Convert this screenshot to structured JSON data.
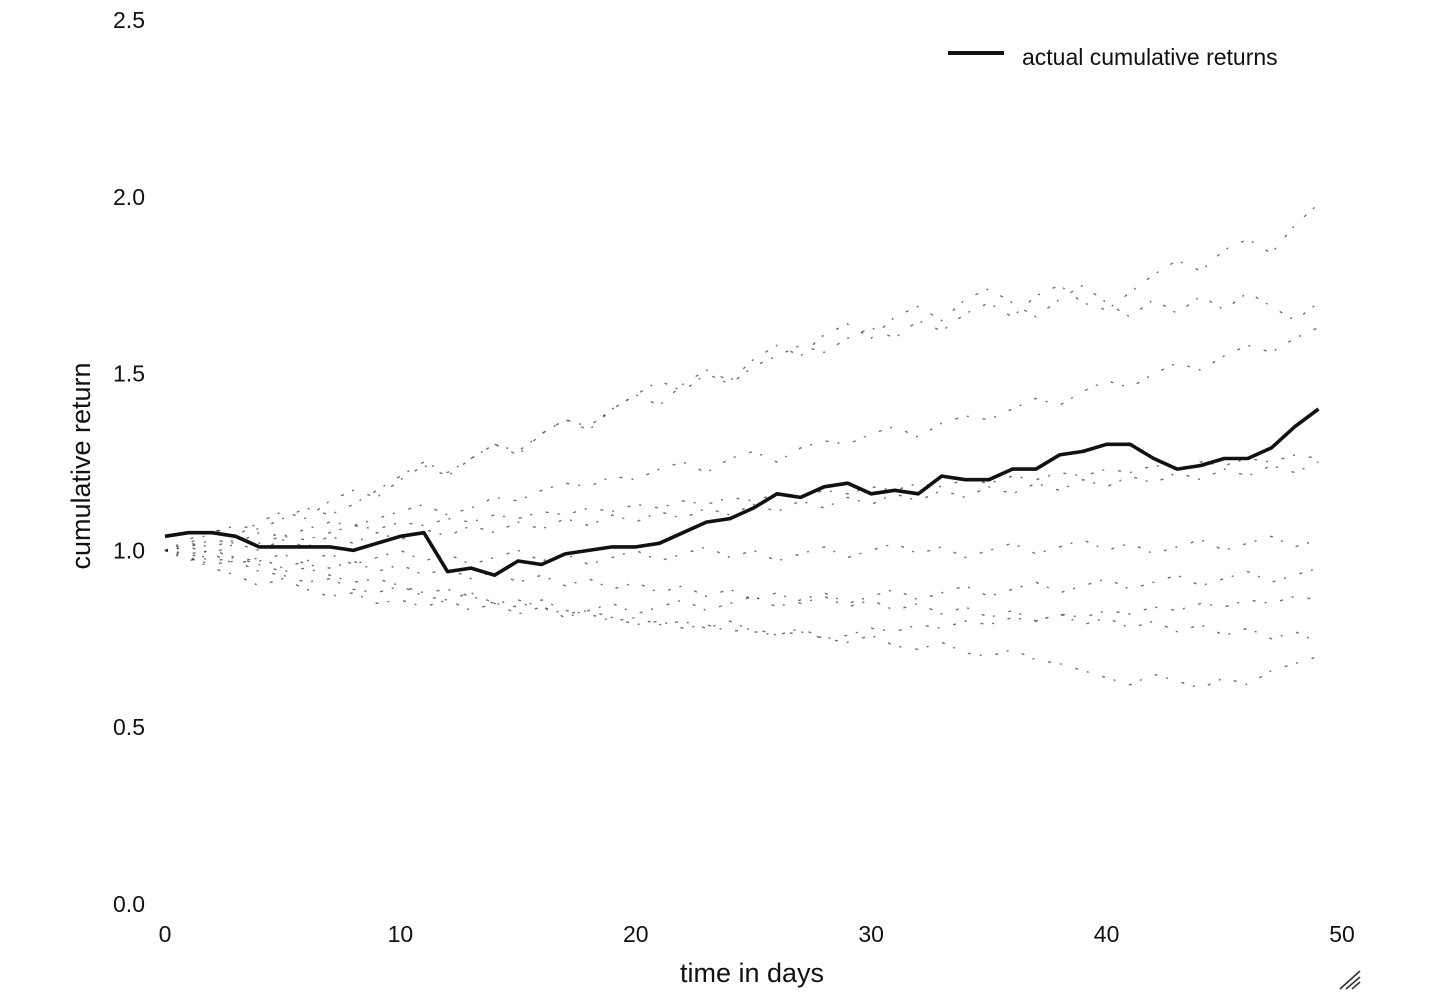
{
  "chart_data": {
    "type": "line",
    "xlabel": "time in days",
    "ylabel": "cumulative return",
    "xlim": [
      0,
      50
    ],
    "ylim": [
      0.0,
      2.5
    ],
    "xticks": [
      0,
      10,
      20,
      30,
      40,
      50
    ],
    "xtick_labels": [
      "0",
      "10",
      "20",
      "30",
      "40",
      "50"
    ],
    "yticks": [
      0.0,
      0.5,
      1.0,
      1.5,
      2.0,
      2.5
    ],
    "ytick_labels": [
      "0.0",
      "0.5",
      "1.0",
      "1.5",
      "2.0",
      "2.5"
    ],
    "grid": false,
    "legend_position": "top-right",
    "legend": [
      "actual cumulative returns"
    ],
    "series": [
      {
        "name": "actual cumulative returns",
        "color": "#111111",
        "x": [
          0,
          1,
          2,
          3,
          4,
          5,
          6,
          7,
          8,
          9,
          10,
          11,
          12,
          13,
          14,
          15,
          16,
          17,
          18,
          19,
          20,
          21,
          22,
          23,
          24,
          25,
          26,
          27,
          28,
          29,
          30,
          31,
          32,
          33,
          34,
          35,
          36,
          37,
          38,
          39,
          40,
          41,
          42,
          43,
          44,
          45,
          46,
          47,
          48,
          49
        ],
        "values": [
          1.04,
          1.05,
          1.05,
          1.04,
          1.01,
          1.01,
          1.01,
          1.01,
          1.0,
          1.02,
          1.04,
          1.05,
          0.94,
          0.95,
          0.93,
          0.97,
          0.96,
          0.99,
          1.0,
          1.01,
          1.01,
          1.02,
          1.05,
          1.08,
          1.09,
          1.12,
          1.16,
          1.15,
          1.18,
          1.19,
          1.16,
          1.17,
          1.16,
          1.21,
          1.2,
          1.2,
          1.23,
          1.23,
          1.27,
          1.28,
          1.3,
          1.3,
          1.26,
          1.23,
          1.24,
          1.26,
          1.26,
          1.29,
          1.35,
          1.4
        ]
      },
      {
        "name": "",
        "kind": "simulation",
        "color": "#333333",
        "x": [
          0,
          1,
          2,
          3,
          4,
          5,
          6,
          7,
          8,
          9,
          10,
          11,
          12,
          13,
          14,
          15,
          16,
          17,
          18,
          19,
          20,
          21,
          22,
          23,
          24,
          25,
          26,
          27,
          28,
          29,
          30,
          31,
          32,
          33,
          34,
          35,
          36,
          37,
          38,
          39,
          40,
          41,
          42,
          43,
          44,
          45,
          46,
          47,
          48,
          49
        ],
        "values": [
          1.0,
          1.02,
          1.05,
          1.07,
          1.06,
          1.09,
          1.12,
          1.1,
          1.13,
          1.17,
          1.21,
          1.25,
          1.22,
          1.26,
          1.3,
          1.28,
          1.33,
          1.37,
          1.35,
          1.4,
          1.44,
          1.48,
          1.45,
          1.5,
          1.47,
          1.52,
          1.55,
          1.58,
          1.56,
          1.6,
          1.63,
          1.6,
          1.65,
          1.62,
          1.67,
          1.7,
          1.66,
          1.72,
          1.75,
          1.7,
          1.68,
          1.73,
          1.78,
          1.82,
          1.79,
          1.85,
          1.88,
          1.84,
          1.92,
          1.98
        ]
      },
      {
        "name": "",
        "kind": "simulation",
        "color": "#333333",
        "x": [
          0,
          1,
          2,
          3,
          4,
          5,
          6,
          7,
          8,
          9,
          10,
          11,
          12,
          13,
          14,
          15,
          16,
          17,
          18,
          19,
          20,
          21,
          22,
          23,
          24,
          25,
          26,
          27,
          28,
          29,
          30,
          31,
          32,
          33,
          34,
          35,
          36,
          37,
          38,
          39,
          40,
          41,
          42,
          43,
          44,
          45,
          46,
          47,
          48,
          49
        ],
        "values": [
          1.0,
          0.98,
          0.96,
          0.97,
          0.94,
          0.93,
          0.91,
          0.92,
          0.89,
          0.88,
          0.9,
          0.87,
          0.86,
          0.88,
          0.85,
          0.84,
          0.86,
          0.83,
          0.82,
          0.8,
          0.81,
          0.79,
          0.8,
          0.78,
          0.8,
          0.77,
          0.76,
          0.78,
          0.75,
          0.74,
          0.76,
          0.73,
          0.72,
          0.74,
          0.71,
          0.7,
          0.72,
          0.69,
          0.68,
          0.66,
          0.64,
          0.62,
          0.65,
          0.63,
          0.61,
          0.64,
          0.62,
          0.66,
          0.68,
          0.7
        ]
      },
      {
        "name": "",
        "kind": "simulation",
        "color": "#333333",
        "x": [
          0,
          1,
          2,
          3,
          4,
          5,
          6,
          7,
          8,
          9,
          10,
          11,
          12,
          13,
          14,
          15,
          16,
          17,
          18,
          19,
          20,
          21,
          22,
          23,
          24,
          25,
          26,
          27,
          28,
          29,
          30,
          31,
          32,
          33,
          34,
          35,
          36,
          37,
          38,
          39,
          40,
          41,
          42,
          43,
          44,
          45,
          46,
          47,
          48,
          49
        ],
        "values": [
          1.0,
          1.01,
          1.03,
          1.02,
          1.05,
          1.04,
          1.06,
          1.08,
          1.07,
          1.09,
          1.11,
          1.13,
          1.1,
          1.12,
          1.15,
          1.14,
          1.17,
          1.19,
          1.18,
          1.21,
          1.2,
          1.23,
          1.25,
          1.22,
          1.26,
          1.28,
          1.25,
          1.29,
          1.31,
          1.3,
          1.33,
          1.35,
          1.32,
          1.36,
          1.38,
          1.37,
          1.4,
          1.43,
          1.41,
          1.45,
          1.48,
          1.46,
          1.5,
          1.53,
          1.51,
          1.55,
          1.58,
          1.56,
          1.6,
          1.63
        ]
      },
      {
        "name": "",
        "kind": "simulation",
        "color": "#333333",
        "x": [
          0,
          1,
          2,
          3,
          4,
          5,
          6,
          7,
          8,
          9,
          10,
          11,
          12,
          13,
          14,
          15,
          16,
          17,
          18,
          19,
          20,
          21,
          22,
          23,
          24,
          25,
          26,
          27,
          28,
          29,
          30,
          31,
          32,
          33,
          34,
          35,
          36,
          37,
          38,
          39,
          40,
          41,
          42,
          43,
          44,
          45,
          46,
          47,
          48,
          49
        ],
        "values": [
          1.0,
          0.99,
          1.0,
          0.98,
          0.97,
          0.99,
          0.96,
          0.95,
          0.97,
          0.94,
          0.96,
          0.93,
          0.95,
          0.92,
          0.94,
          0.91,
          0.93,
          0.9,
          0.92,
          0.89,
          0.91,
          0.88,
          0.9,
          0.87,
          0.89,
          0.86,
          0.88,
          0.85,
          0.87,
          0.84,
          0.86,
          0.83,
          0.85,
          0.82,
          0.84,
          0.81,
          0.83,
          0.8,
          0.82,
          0.79,
          0.81,
          0.78,
          0.8,
          0.77,
          0.79,
          0.76,
          0.78,
          0.75,
          0.77,
          0.74
        ]
      },
      {
        "name": "",
        "kind": "simulation",
        "color": "#333333",
        "x": [
          0,
          1,
          2,
          3,
          4,
          5,
          6,
          7,
          8,
          9,
          10,
          11,
          12,
          13,
          14,
          15,
          16,
          17,
          18,
          19,
          20,
          21,
          22,
          23,
          24,
          25,
          26,
          27,
          28,
          29,
          30,
          31,
          32,
          33,
          34,
          35,
          36,
          37,
          38,
          39,
          40,
          41,
          42,
          43,
          44,
          45,
          46,
          47,
          48,
          49
        ],
        "values": [
          1.0,
          1.02,
          1.01,
          1.03,
          1.02,
          1.04,
          1.03,
          1.05,
          1.07,
          1.06,
          1.08,
          1.07,
          1.09,
          1.08,
          1.1,
          1.09,
          1.11,
          1.1,
          1.12,
          1.11,
          1.13,
          1.12,
          1.14,
          1.13,
          1.15,
          1.14,
          1.16,
          1.15,
          1.17,
          1.16,
          1.18,
          1.17,
          1.19,
          1.18,
          1.2,
          1.19,
          1.21,
          1.2,
          1.22,
          1.21,
          1.23,
          1.22,
          1.24,
          1.23,
          1.25,
          1.24,
          1.26,
          1.25,
          1.27,
          1.26
        ]
      },
      {
        "name": "",
        "kind": "simulation",
        "color": "#333333",
        "x": [
          0,
          1,
          2,
          3,
          4,
          5,
          6,
          7,
          8,
          9,
          10,
          11,
          12,
          13,
          14,
          15,
          16,
          17,
          18,
          19,
          20,
          21,
          22,
          23,
          24,
          25,
          26,
          27,
          28,
          29,
          30,
          31,
          32,
          33,
          34,
          35,
          36,
          37,
          38,
          39,
          40,
          41,
          42,
          43,
          44,
          45,
          46,
          47,
          48,
          49
        ],
        "values": [
          1.0,
          0.97,
          0.99,
          0.96,
          0.98,
          0.95,
          0.97,
          0.99,
          0.96,
          0.98,
          1.0,
          0.97,
          0.99,
          0.96,
          0.98,
          1.0,
          0.97,
          0.99,
          0.96,
          0.98,
          1.0,
          0.97,
          0.99,
          1.01,
          0.98,
          1.0,
          0.97,
          0.99,
          1.01,
          0.98,
          1.0,
          1.02,
          0.99,
          1.01,
          0.98,
          1.0,
          1.02,
          0.99,
          1.01,
          1.03,
          1.0,
          1.02,
          0.99,
          1.01,
          1.03,
          1.0,
          1.02,
          1.04,
          1.01,
          1.03
        ]
      },
      {
        "name": "",
        "kind": "simulation",
        "color": "#333333",
        "x": [
          0,
          1,
          2,
          3,
          4,
          5,
          6,
          7,
          8,
          9,
          10,
          11,
          12,
          13,
          14,
          15,
          16,
          17,
          18,
          19,
          20,
          21,
          22,
          23,
          24,
          25,
          26,
          27,
          28,
          29,
          30,
          31,
          32,
          33,
          34,
          35,
          36,
          37,
          38,
          39,
          40,
          41,
          42,
          43,
          44,
          45,
          46,
          47,
          48,
          49
        ],
        "values": [
          1.0,
          1.03,
          1.06,
          1.04,
          1.08,
          1.11,
          1.09,
          1.14,
          1.17,
          1.15,
          1.2,
          1.24,
          1.21,
          1.26,
          1.3,
          1.27,
          1.33,
          1.37,
          1.34,
          1.4,
          1.44,
          1.41,
          1.47,
          1.51,
          1.48,
          1.54,
          1.58,
          1.55,
          1.61,
          1.64,
          1.6,
          1.66,
          1.69,
          1.65,
          1.71,
          1.74,
          1.7,
          1.66,
          1.71,
          1.75,
          1.7,
          1.66,
          1.71,
          1.67,
          1.72,
          1.68,
          1.73,
          1.69,
          1.65,
          1.7
        ]
      },
      {
        "name": "",
        "kind": "simulation",
        "color": "#333333",
        "x": [
          0,
          1,
          2,
          3,
          4,
          5,
          6,
          7,
          8,
          9,
          10,
          11,
          12,
          13,
          14,
          15,
          16,
          17,
          18,
          19,
          20,
          21,
          22,
          23,
          24,
          25,
          26,
          27,
          28,
          29,
          30,
          31,
          32,
          33,
          34,
          35,
          36,
          37,
          38,
          39,
          40,
          41,
          42,
          43,
          44,
          45,
          46,
          47,
          48,
          49
        ],
        "values": [
          1.0,
          0.98,
          0.95,
          0.93,
          0.9,
          0.92,
          0.89,
          0.87,
          0.88,
          0.85,
          0.86,
          0.84,
          0.86,
          0.83,
          0.85,
          0.82,
          0.84,
          0.81,
          0.83,
          0.85,
          0.82,
          0.84,
          0.86,
          0.83,
          0.85,
          0.87,
          0.84,
          0.86,
          0.88,
          0.85,
          0.87,
          0.89,
          0.86,
          0.88,
          0.9,
          0.87,
          0.89,
          0.91,
          0.88,
          0.9,
          0.92,
          0.89,
          0.91,
          0.93,
          0.9,
          0.92,
          0.94,
          0.91,
          0.93,
          0.95
        ]
      },
      {
        "name": "",
        "kind": "simulation",
        "color": "#333333",
        "x": [
          0,
          1,
          2,
          3,
          4,
          5,
          6,
          7,
          8,
          9,
          10,
          11,
          12,
          13,
          14,
          15,
          16,
          17,
          18,
          19,
          20,
          21,
          22,
          23,
          24,
          25,
          26,
          27,
          28,
          29,
          30,
          31,
          32,
          33,
          34,
          35,
          36,
          37,
          38,
          39,
          40,
          41,
          42,
          43,
          44,
          45,
          46,
          47,
          48,
          49
        ],
        "values": [
          1.0,
          1.01,
          0.99,
          1.02,
          1.0,
          1.03,
          1.01,
          1.04,
          1.02,
          1.05,
          1.03,
          1.06,
          1.04,
          1.07,
          1.05,
          1.08,
          1.06,
          1.09,
          1.07,
          1.1,
          1.08,
          1.11,
          1.09,
          1.12,
          1.1,
          1.13,
          1.11,
          1.14,
          1.12,
          1.15,
          1.13,
          1.16,
          1.14,
          1.17,
          1.15,
          1.18,
          1.16,
          1.19,
          1.17,
          1.2,
          1.18,
          1.21,
          1.19,
          1.22,
          1.2,
          1.23,
          1.21,
          1.24,
          1.22,
          1.25
        ]
      },
      {
        "name": "",
        "kind": "simulation",
        "color": "#333333",
        "x": [
          0,
          1,
          2,
          3,
          4,
          5,
          6,
          7,
          8,
          9,
          10,
          11,
          12,
          13,
          14,
          15,
          16,
          17,
          18,
          19,
          20,
          21,
          22,
          23,
          24,
          25,
          26,
          27,
          28,
          29,
          30,
          31,
          32,
          33,
          34,
          35,
          36,
          37,
          38,
          39,
          40,
          41,
          42,
          43,
          44,
          45,
          46,
          47,
          48,
          49
        ],
        "values": [
          1.0,
          0.99,
          0.97,
          0.98,
          0.96,
          0.94,
          0.95,
          0.93,
          0.91,
          0.92,
          0.9,
          0.88,
          0.89,
          0.87,
          0.85,
          0.86,
          0.84,
          0.82,
          0.83,
          0.81,
          0.79,
          0.8,
          0.78,
          0.79,
          0.77,
          0.78,
          0.76,
          0.77,
          0.75,
          0.76,
          0.78,
          0.77,
          0.79,
          0.78,
          0.8,
          0.79,
          0.81,
          0.8,
          0.82,
          0.81,
          0.83,
          0.82,
          0.84,
          0.83,
          0.85,
          0.84,
          0.86,
          0.85,
          0.87,
          0.86
        ]
      }
    ]
  }
}
